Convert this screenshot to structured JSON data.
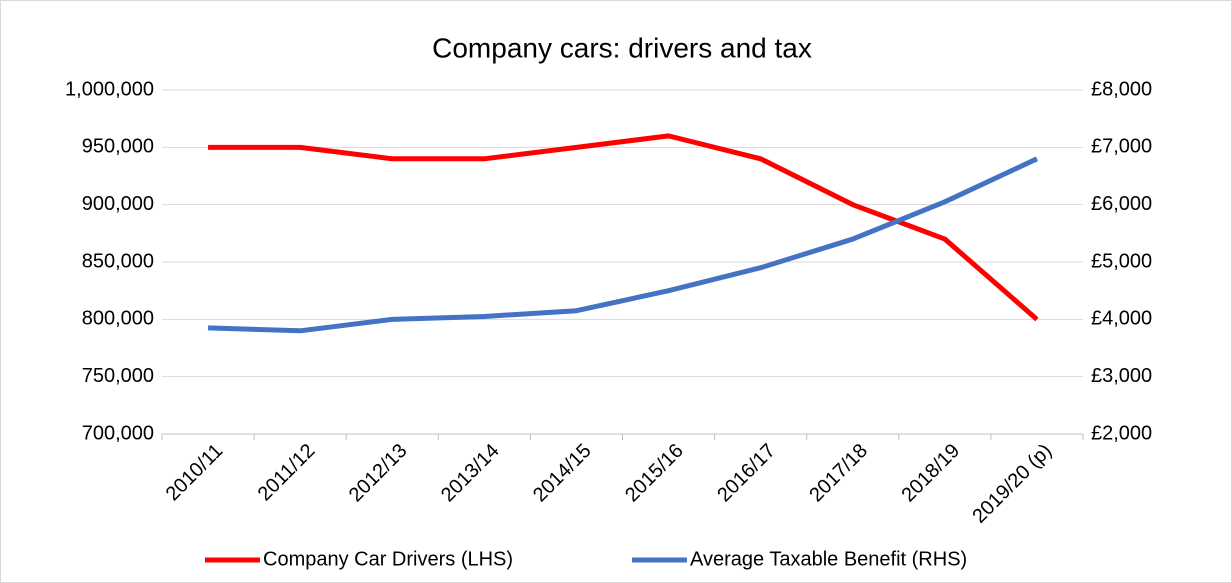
{
  "chart_data": {
    "type": "line",
    "title": "Company cars: drivers and tax",
    "categories": [
      "2010/11",
      "2011/12",
      "2012/13",
      "2013/14",
      "2014/15",
      "2015/16",
      "2016/17",
      "2017/18",
      "2018/19",
      "2019/20 (p)"
    ],
    "series": [
      {
        "name": "Company Car Drivers (LHS)",
        "color": "#ff0000",
        "values": [
          950000,
          950000,
          940000,
          940000,
          950000,
          960000,
          940000,
          900000,
          870000,
          800000
        ]
      },
      {
        "name": "Average Taxable Benefit (RHS)",
        "color": "#4472c4",
        "axis": "y2",
        "values": [
          3850,
          3800,
          4000,
          4050,
          4150,
          4500,
          4900,
          5400,
          6050,
          6800
        ]
      }
    ],
    "ylim": [
      700000,
      1000000
    ],
    "yticks": [
      {
        "value": 700000,
        "label": "700,000"
      },
      {
        "value": 750000,
        "label": "750,000"
      },
      {
        "value": 800000,
        "label": "800,000"
      },
      {
        "value": 850000,
        "label": "850,000"
      },
      {
        "value": 900000,
        "label": "900,000"
      },
      {
        "value": 950000,
        "label": "950,000"
      },
      {
        "value": 1000000,
        "label": "1,000,000"
      }
    ],
    "y2lim": [
      2000,
      8000
    ],
    "y2ticks": [
      {
        "value": 2000,
        "label": "£2,000"
      },
      {
        "value": 3000,
        "label": "£3,000"
      },
      {
        "value": 4000,
        "label": "£4,000"
      },
      {
        "value": 5000,
        "label": "£5,000"
      },
      {
        "value": 6000,
        "label": "£6,000"
      },
      {
        "value": 7000,
        "label": "£7,000"
      },
      {
        "value": 8000,
        "label": "£8,000"
      }
    ],
    "grid": true,
    "legend": "bottom"
  }
}
